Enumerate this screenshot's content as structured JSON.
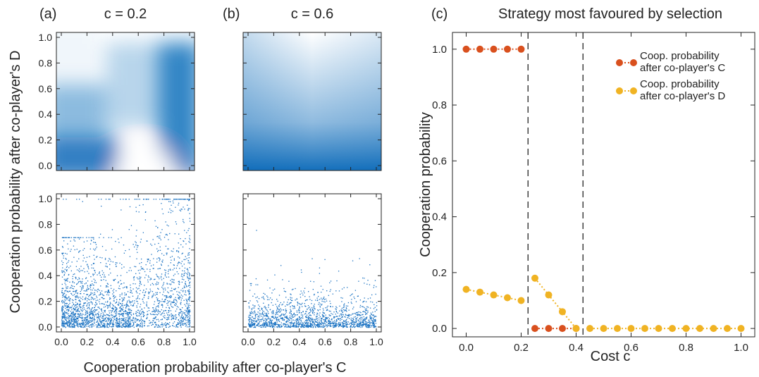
{
  "colors": {
    "heat": "#0868b8",
    "scatter": "#1a72c2",
    "coop_c": "#d9501e",
    "coop_d": "#f0b323",
    "axis": "#222222"
  },
  "panels": {
    "a": {
      "label": "(a)",
      "title": "c = 0.2"
    },
    "b": {
      "label": "(b)",
      "title": "c = 0.6"
    },
    "c": {
      "label": "(c)",
      "title": "Strategy most favoured by selection"
    }
  },
  "shared": {
    "ylabel": "Cooperation probability after co-player's D",
    "xlabel": "Cooperation probability after co-player's C"
  },
  "chart_data": [
    {
      "panel": "a-top",
      "type": "heatmap",
      "title": "c = 0.2",
      "xlim": [
        0,
        1
      ],
      "ylim": [
        0,
        1
      ],
      "description_of_density": "high density along bottom edge and right edge; low density near (0.6, 0) and top-left"
    },
    {
      "panel": "b-top",
      "type": "heatmap",
      "title": "c = 0.6",
      "xlim": [
        0,
        1
      ],
      "ylim": [
        0,
        1
      ],
      "description_of_density": "density concentrated near y = 0, fading upward"
    },
    {
      "panel": "a-bottom",
      "type": "scatter",
      "xlim": [
        0,
        1
      ],
      "ylim": [
        0,
        1
      ],
      "xticks": [
        "0.0",
        "0.2",
        "0.4",
        "0.6",
        "0.8",
        "1.0"
      ],
      "yticks": [
        "0.0",
        "0.2",
        "0.4",
        "0.6",
        "0.8",
        "1.0"
      ],
      "point_count_approx": 2600
    },
    {
      "panel": "b-bottom",
      "type": "scatter",
      "xlim": [
        0,
        1
      ],
      "ylim": [
        0,
        1
      ],
      "xticks": [
        "0.0",
        "0.2",
        "0.4",
        "0.6",
        "0.8",
        "1.0"
      ],
      "point_count_approx": 1600
    },
    {
      "panel": "c",
      "type": "line",
      "title": "Strategy most favoured by selection",
      "xlabel": "Cost c",
      "ylabel": "Cooperation probability",
      "xlim": [
        -0.05,
        1.05
      ],
      "ylim": [
        -0.03,
        1.06
      ],
      "xticks": [
        "0.0",
        "0.2",
        "0.4",
        "0.6",
        "0.8",
        "1.0"
      ],
      "yticks": [
        "0.0",
        "0.2",
        "0.4",
        "0.6",
        "0.8",
        "1.0"
      ],
      "vlines": [
        0.225,
        0.425
      ],
      "legend_position": "top-right",
      "series": [
        {
          "name": "Coop. probability after co-player's C",
          "color": "#d9501e",
          "segments": [
            {
              "x": [
                0.0,
                0.05,
                0.1,
                0.15,
                0.2
              ],
              "y": [
                1,
                1,
                1,
                1,
                1
              ]
            },
            {
              "x": [
                0.25,
                0.3,
                0.35,
                0.4
              ],
              "y": [
                0,
                0,
                0,
                0
              ]
            }
          ]
        },
        {
          "name": "Coop. probability after co-player's D",
          "color": "#f0b323",
          "segments": [
            {
              "x": [
                0.0,
                0.05,
                0.1,
                0.15,
                0.2
              ],
              "y": [
                0.14,
                0.13,
                0.12,
                0.11,
                0.1
              ]
            },
            {
              "x": [
                0.25,
                0.3,
                0.35,
                0.4
              ],
              "y": [
                0.18,
                0.12,
                0.06,
                0.0
              ]
            },
            {
              "x": [
                0.45,
                0.5,
                0.55,
                0.6,
                0.65,
                0.7,
                0.75,
                0.8,
                0.85,
                0.9,
                0.95,
                1.0
              ],
              "y": [
                0,
                0,
                0,
                0,
                0,
                0,
                0,
                0,
                0,
                0,
                0,
                0
              ]
            }
          ]
        }
      ]
    }
  ]
}
